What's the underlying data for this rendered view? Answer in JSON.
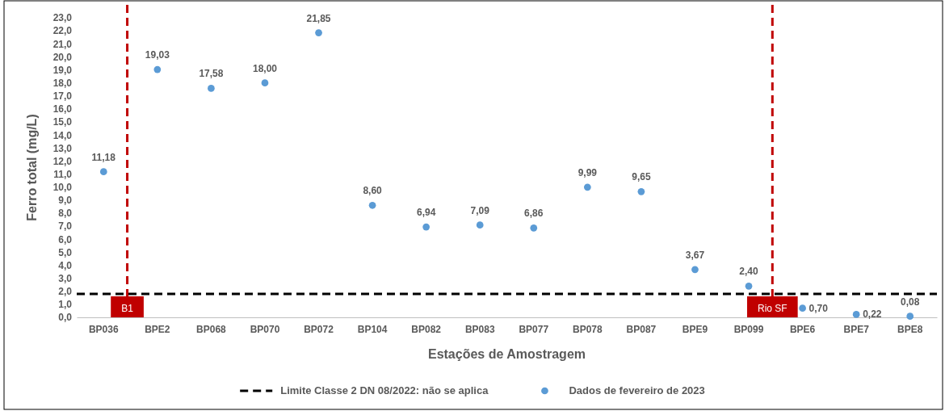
{
  "chart_data": {
    "type": "scatter",
    "xlabel": "Estações de Amostragem",
    "ylabel": "Ferro total (mg/L)",
    "categories": [
      "BP036",
      "BPE2",
      "BP068",
      "BP070",
      "BP072",
      "BP104",
      "BP082",
      "BP083",
      "BP077",
      "BP078",
      "BP087",
      "BPE9",
      "BP099",
      "BPE6",
      "BPE7",
      "BPE8"
    ],
    "series": [
      {
        "name": "Dados de fevereiro de 2023",
        "color": "#5b9bd5",
        "values": [
          11.18,
          19.03,
          17.58,
          18.0,
          21.85,
          8.6,
          6.94,
          7.09,
          6.86,
          9.99,
          9.65,
          3.67,
          2.4,
          0.7,
          0.22,
          0.08
        ],
        "value_labels": [
          "11,18",
          "19,03",
          "17,58",
          "18,00",
          "21,85",
          "8,60",
          "6,94",
          "7,09",
          "6,86",
          "9,99",
          "9,65",
          "3,67",
          "2,40",
          "0,70",
          "0,22",
          "0,08"
        ]
      }
    ],
    "ylim": [
      0,
      23
    ],
    "yticks": [
      {
        "value": 0,
        "label": "0,0"
      },
      {
        "value": 1,
        "label": "1,0"
      },
      {
        "value": 2,
        "label": "2,0"
      },
      {
        "value": 3,
        "label": "3,0"
      },
      {
        "value": 4,
        "label": "4,0"
      },
      {
        "value": 5,
        "label": "5,0"
      },
      {
        "value": 6,
        "label": "6,0"
      },
      {
        "value": 7,
        "label": "7,0"
      },
      {
        "value": 8,
        "label": "8,0"
      },
      {
        "value": 9,
        "label": "9,0"
      },
      {
        "value": 10,
        "label": "10,0"
      },
      {
        "value": 11,
        "label": "11,0"
      },
      {
        "value": 12,
        "label": "12,0"
      },
      {
        "value": 13,
        "label": "13,0"
      },
      {
        "value": 14,
        "label": "14,0"
      },
      {
        "value": 15,
        "label": "15,0"
      },
      {
        "value": 16,
        "label": "16,0"
      },
      {
        "value": 17,
        "label": "17,0"
      },
      {
        "value": 18,
        "label": "18,0"
      },
      {
        "value": 19,
        "label": "19,0"
      },
      {
        "value": 20,
        "label": "20,0"
      },
      {
        "value": 21,
        "label": "21,0"
      },
      {
        "value": 22,
        "label": "22,0"
      },
      {
        "value": 23,
        "label": "23,0"
      }
    ],
    "ref_lines": [
      {
        "axis": "y",
        "value": 1.8,
        "label": "Limite Classe 2 DN 08/2022: não se aplica",
        "color": "#000000",
        "line_style": "dashed"
      }
    ],
    "annotations": [
      "B1",
      "Rio SF"
    ],
    "marker": "circle",
    "grid": false,
    "legend": "bottom"
  }
}
